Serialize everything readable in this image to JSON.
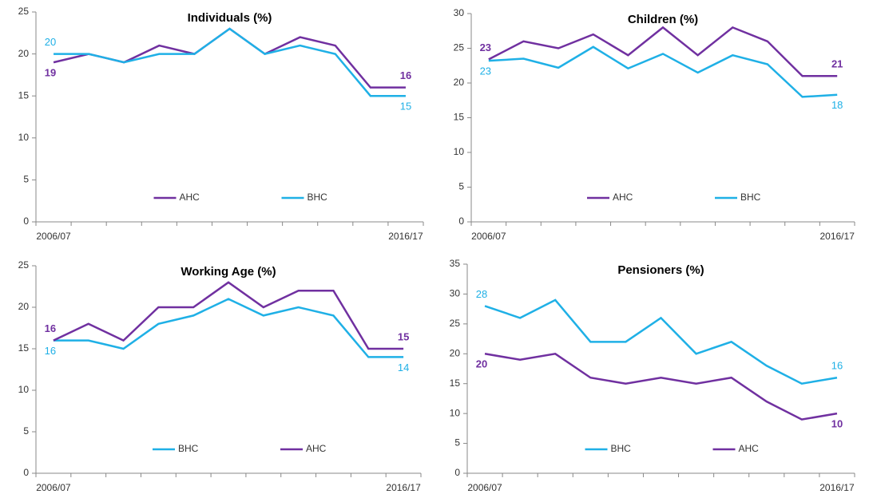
{
  "chart_data": [
    {
      "type": "line",
      "title": "Individuals (%)",
      "categories": [
        "2006/07",
        null,
        null,
        null,
        null,
        null,
        null,
        null,
        null,
        null,
        "2016/17"
      ],
      "series": [
        {
          "name": "AHC",
          "color": "#7030a0",
          "values": [
            19,
            20,
            19,
            21,
            20,
            23,
            20,
            22,
            21,
            16,
            16
          ]
        },
        {
          "name": "BHC",
          "color": "#1fb0e6",
          "values": [
            20,
            20,
            19,
            20,
            20,
            23,
            20,
            21,
            20,
            15,
            15
          ]
        }
      ],
      "ylim": [
        0,
        25
      ],
      "yticks": [
        0,
        5,
        10,
        15,
        20,
        25
      ]
    },
    {
      "type": "line",
      "title": "Children (%)",
      "categories": [
        "2006/07",
        null,
        null,
        null,
        null,
        null,
        null,
        null,
        null,
        null,
        "2016/17"
      ],
      "series": [
        {
          "name": "AHC",
          "color": "#7030a0",
          "values": [
            23.4,
            26,
            25,
            27,
            24,
            28,
            24,
            28,
            26,
            21,
            21
          ],
          "value_labels": [
            "23",
            null,
            null,
            null,
            null,
            null,
            null,
            null,
            null,
            null,
            "21"
          ]
        },
        {
          "name": "BHC",
          "color": "#1fb0e6",
          "values": [
            23.2,
            23.5,
            22.2,
            25.2,
            22.1,
            24.2,
            21.5,
            24,
            22.7,
            18,
            18.3
          ],
          "value_labels": [
            "23",
            null,
            null,
            null,
            null,
            null,
            null,
            null,
            null,
            null,
            "18"
          ]
        }
      ],
      "ylim": [
        0,
        30
      ],
      "yticks": [
        0,
        5,
        10,
        15,
        20,
        25,
        30
      ]
    },
    {
      "type": "line",
      "title": "Working Age (%)",
      "categories": [
        "2006/07",
        null,
        null,
        null,
        null,
        null,
        null,
        null,
        null,
        null,
        "2016/17"
      ],
      "series": [
        {
          "name": "BHC",
          "color": "#1fb0e6",
          "values": [
            16,
            16,
            15,
            18,
            19,
            21,
            19,
            20,
            19,
            14,
            14
          ]
        },
        {
          "name": "AHC",
          "color": "#7030a0",
          "values": [
            16,
            18,
            16,
            20,
            20,
            23,
            20,
            22,
            22,
            15,
            15
          ]
        }
      ],
      "ylim": [
        0,
        25
      ],
      "yticks": [
        0,
        5,
        10,
        15,
        20,
        25
      ]
    },
    {
      "type": "line",
      "title": "Pensioners (%)",
      "categories": [
        "2006/07",
        null,
        null,
        null,
        null,
        null,
        null,
        null,
        null,
        null,
        "2016/17"
      ],
      "series": [
        {
          "name": "BHC",
          "color": "#1fb0e6",
          "values": [
            28,
            26,
            29,
            22,
            22,
            26,
            20,
            22,
            18,
            15,
            16
          ]
        },
        {
          "name": "AHC",
          "color": "#7030a0",
          "values": [
            20,
            19,
            20,
            16,
            15,
            16,
            15,
            16,
            12,
            9,
            10
          ]
        }
      ],
      "ylim": [
        0,
        35
      ],
      "yticks": [
        0,
        5,
        10,
        15,
        20,
        25,
        30,
        35
      ]
    }
  ]
}
